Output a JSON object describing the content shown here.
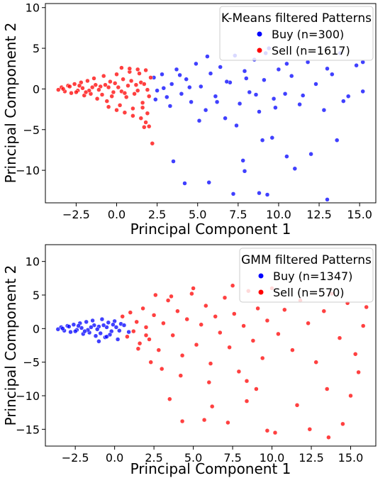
{
  "colors": {
    "buy": "#0000ff",
    "sell": "#ff0000",
    "axis": "#000000"
  },
  "chart_data": [
    {
      "type": "scatter",
      "title": "",
      "xlabel": "Principal Component 1",
      "ylabel": "Principal Component 2",
      "xlim": [
        -4.4,
        16.0
      ],
      "ylim": [
        -14.0,
        10.5
      ],
      "xticks": [
        -2.5,
        0.0,
        2.5,
        5.0,
        7.5,
        10.0,
        12.5,
        15.0
      ],
      "yticks": [
        10,
        5,
        0,
        -5,
        -10
      ],
      "grid": false,
      "legend": {
        "title": "K-Means filtered Patterns",
        "position": "top-right"
      },
      "series": [
        {
          "name": "Buy (n=300)",
          "color": "#0000ff",
          "points": [
            [
              2.3,
              1.4
            ],
            [
              2.5,
              -0.2
            ],
            [
              2.8,
              1.8
            ],
            [
              3.1,
              -1.0
            ],
            [
              3.4,
              0.6
            ],
            [
              3.7,
              2.4
            ],
            [
              4.0,
              -0.6
            ],
            [
              4.3,
              1.2
            ],
            [
              4.6,
              -1.6
            ],
            [
              4.9,
              3.1
            ],
            [
              5.2,
              0.3
            ],
            [
              5.5,
              -2.6
            ],
            [
              5.8,
              1.9
            ],
            [
              6.1,
              -0.9
            ],
            [
              6.4,
              2.7
            ],
            [
              6.7,
              -3.6
            ],
            [
              7.0,
              0.8
            ],
            [
              7.3,
              4.1
            ],
            [
              7.6,
              -1.8
            ],
            [
              7.9,
              2.2
            ],
            [
              8.2,
              -0.4
            ],
            [
              8.5,
              3.6
            ],
            [
              8.8,
              -2.8
            ],
            [
              9.1,
              1.1
            ],
            [
              9.4,
              5.0
            ],
            [
              9.7,
              -1.2
            ],
            [
              10.0,
              2.4
            ],
            [
              10.4,
              -0.6
            ],
            [
              10.8,
              1.6
            ],
            [
              11.3,
              -1.9
            ],
            [
              11.8,
              3.3
            ],
            [
              12.3,
              0.6
            ],
            [
              12.8,
              -2.6
            ],
            [
              13.3,
              1.8
            ],
            [
              13.8,
              4.4
            ],
            [
              14.3,
              -0.9
            ],
            [
              14.8,
              2.9
            ],
            [
              15.2,
              3.3
            ],
            [
              2.4,
              -1.3
            ],
            [
              2.9,
              0.1
            ],
            [
              3.3,
              -2.1
            ],
            [
              3.9,
              1.7
            ],
            [
              4.5,
              0.2
            ],
            [
              5.1,
              -3.9
            ],
            [
              5.6,
              4.0
            ],
            [
              6.2,
              -1.6
            ],
            [
              6.8,
              0.9
            ],
            [
              7.4,
              -4.5
            ],
            [
              8.0,
              1.3
            ],
            [
              8.6,
              -0.7
            ],
            [
              9.2,
              4.4
            ],
            [
              9.8,
              -2.3
            ],
            [
              10.5,
              3.1
            ],
            [
              11.5,
              -0.8
            ],
            [
              13.0,
              2.5
            ],
            [
              14.0,
              -1.5
            ],
            [
              3.5,
              -8.9
            ],
            [
              4.2,
              -11.6
            ],
            [
              5.7,
              -11.5
            ],
            [
              7.2,
              -12.9
            ],
            [
              7.8,
              -8.8
            ],
            [
              7.9,
              -10.1
            ],
            [
              8.8,
              -12.8
            ],
            [
              9.3,
              -13.0
            ],
            [
              9.6,
              -6.0
            ],
            [
              9.0,
              -6.3
            ],
            [
              10.5,
              -8.3
            ],
            [
              11.0,
              -9.8
            ],
            [
              12.0,
              -8.0
            ],
            [
              13.0,
              -13.6
            ],
            [
              13.6,
              -6.3
            ],
            [
              15.2,
              -0.3
            ]
          ]
        },
        {
          "name": "Sell (n=1617)",
          "color": "#ff0000",
          "points": [
            [
              -3.6,
              -0.1
            ],
            [
              -3.4,
              0.2
            ],
            [
              -3.2,
              -0.3
            ],
            [
              -3.0,
              0.4
            ],
            [
              -2.8,
              -0.5
            ],
            [
              -2.6,
              0.6
            ],
            [
              -2.4,
              -0.2
            ],
            [
              -2.2,
              0.8
            ],
            [
              -2.0,
              -0.8
            ],
            [
              -1.8,
              1.0
            ],
            [
              -1.6,
              -0.6
            ],
            [
              -1.4,
              1.3
            ],
            [
              -1.2,
              -1.2
            ],
            [
              -1.0,
              0.3
            ],
            [
              -0.8,
              1.6
            ],
            [
              -0.6,
              -1.5
            ],
            [
              -0.4,
              0.9
            ],
            [
              -0.2,
              -0.4
            ],
            [
              0.0,
              1.8
            ],
            [
              0.2,
              -2.0
            ],
            [
              0.4,
              1.2
            ],
            [
              0.6,
              -1.0
            ],
            [
              0.8,
              2.1
            ],
            [
              1.0,
              -2.4
            ],
            [
              1.2,
              0.5
            ],
            [
              1.4,
              1.9
            ],
            [
              1.6,
              -1.7
            ],
            [
              1.8,
              2.3
            ],
            [
              2.0,
              -0.9
            ],
            [
              2.1,
              1.4
            ],
            [
              -3.3,
              0.0
            ],
            [
              -2.9,
              0.3
            ],
            [
              -2.5,
              -0.4
            ],
            [
              -2.1,
              0.1
            ],
            [
              -1.7,
              -0.2
            ],
            [
              -1.3,
              0.5
            ],
            [
              -0.9,
              -0.7
            ],
            [
              -0.5,
              0.2
            ],
            [
              -0.1,
              0.7
            ],
            [
              0.3,
              -0.3
            ],
            [
              0.7,
              0.4
            ],
            [
              1.1,
              -0.6
            ],
            [
              1.5,
              0.8
            ],
            [
              1.9,
              -0.1
            ],
            [
              -2.3,
              0.4
            ],
            [
              -1.9,
              -0.4
            ],
            [
              -1.5,
              0.2
            ],
            [
              -1.1,
              -0.1
            ],
            [
              -0.7,
              0.5
            ],
            [
              -0.3,
              -0.9
            ],
            [
              0.1,
              0.2
            ],
            [
              0.5,
              -0.5
            ],
            [
              0.9,
              1.0
            ],
            [
              1.3,
              -0.2
            ],
            [
              1.7,
              0.6
            ],
            [
              -0.5,
              -2.2
            ],
            [
              0.0,
              -2.6
            ],
            [
              0.5,
              -2.9
            ],
            [
              1.0,
              -3.3
            ],
            [
              1.5,
              -3.6
            ],
            [
              1.8,
              -4.1
            ],
            [
              2.0,
              -4.6
            ],
            [
              0.3,
              2.6
            ],
            [
              0.8,
              2.5
            ],
            [
              1.3,
              2.4
            ],
            [
              1.6,
              -2.3
            ],
            [
              1.9,
              -3.0
            ],
            [
              1.7,
              -4.7
            ],
            [
              2.2,
              -6.7
            ]
          ]
        }
      ]
    },
    {
      "type": "scatter",
      "title": "",
      "xlabel": "Principal Component 1",
      "ylabel": "Principal Component 2",
      "xlim": [
        -4.4,
        16.6
      ],
      "ylim": [
        -17.5,
        12.5
      ],
      "xticks": [
        -2.5,
        0.0,
        2.5,
        5.0,
        7.5,
        10.0,
        12.5,
        15.0
      ],
      "yticks": [
        10,
        5,
        0,
        -5,
        -10,
        -15
      ],
      "grid": false,
      "legend": {
        "title": "GMM filtered Patterns",
        "position": "top-right"
      },
      "series": [
        {
          "name": "Buy (n=1347)",
          "color": "#0000ff",
          "points": [
            [
              -3.6,
              -0.1
            ],
            [
              -3.4,
              0.2
            ],
            [
              -3.2,
              -0.3
            ],
            [
              -3.0,
              0.4
            ],
            [
              -2.8,
              -0.5
            ],
            [
              -2.6,
              0.6
            ],
            [
              -2.4,
              -0.2
            ],
            [
              -2.2,
              0.8
            ],
            [
              -2.0,
              -0.8
            ],
            [
              -1.8,
              1.0
            ],
            [
              -1.6,
              -0.6
            ],
            [
              -1.4,
              1.2
            ],
            [
              -1.2,
              -1.1
            ],
            [
              -1.0,
              0.3
            ],
            [
              -0.8,
              1.4
            ],
            [
              -0.6,
              -1.3
            ],
            [
              -0.4,
              0.9
            ],
            [
              -0.2,
              -0.4
            ],
            [
              0.0,
              1.1
            ],
            [
              0.2,
              -1.6
            ],
            [
              0.4,
              0.7
            ],
            [
              -3.3,
              0.0
            ],
            [
              -2.9,
              0.3
            ],
            [
              -2.5,
              -0.4
            ],
            [
              -2.1,
              0.1
            ],
            [
              -1.7,
              -0.2
            ],
            [
              -1.3,
              0.5
            ],
            [
              -0.9,
              -0.7
            ],
            [
              -0.5,
              0.2
            ],
            [
              -0.1,
              0.6
            ],
            [
              0.3,
              -0.3
            ],
            [
              -2.3,
              0.4
            ],
            [
              -1.9,
              -0.4
            ],
            [
              -1.5,
              0.2
            ],
            [
              -1.1,
              -0.1
            ],
            [
              -0.7,
              0.5
            ],
            [
              -0.3,
              -0.9
            ],
            [
              0.1,
              0.2
            ],
            [
              -1.0,
              -1.9
            ],
            [
              -0.5,
              -1.2
            ],
            [
              0.6,
              0.5
            ],
            [
              0.9,
              -0.5
            ]
          ]
        },
        {
          "name": "Sell (n=570)",
          "color": "#ff0000",
          "points": [
            [
              0.5,
              1.8
            ],
            [
              0.8,
              -1.2
            ],
            [
              1.0,
              2.4
            ],
            [
              1.2,
              -0.4
            ],
            [
              1.4,
              1.0
            ],
            [
              1.6,
              -2.2
            ],
            [
              1.8,
              3.0
            ],
            [
              2.0,
              0.2
            ],
            [
              2.2,
              -1.6
            ],
            [
              2.5,
              2.0
            ],
            [
              2.8,
              -3.2
            ],
            [
              3.1,
              0.8
            ],
            [
              3.4,
              4.2
            ],
            [
              3.7,
              -1.0
            ],
            [
              4.0,
              2.6
            ],
            [
              4.3,
              -4.0
            ],
            [
              4.6,
              1.4
            ],
            [
              4.9,
              5.2
            ],
            [
              5.2,
              -2.4
            ],
            [
              5.5,
              0.6
            ],
            [
              5.8,
              3.4
            ],
            [
              6.1,
              -5.2
            ],
            [
              6.4,
              1.8
            ],
            [
              6.7,
              -0.6
            ],
            [
              7.0,
              4.6
            ],
            [
              7.3,
              -2.8
            ],
            [
              7.6,
              2.2
            ],
            [
              7.9,
              -6.4
            ],
            [
              8.2,
              0.4
            ],
            [
              8.5,
              5.6
            ],
            [
              8.8,
              -1.8
            ],
            [
              9.1,
              3.0
            ],
            [
              9.4,
              -4.4
            ],
            [
              9.7,
              1.2
            ],
            [
              10.0,
              6.0
            ],
            [
              10.4,
              -0.8
            ],
            [
              10.8,
              2.8
            ],
            [
              11.3,
              -3.2
            ],
            [
              11.8,
              4.2
            ],
            [
              12.3,
              0.8
            ],
            [
              12.8,
              -5.0
            ],
            [
              13.3,
              2.6
            ],
            [
              13.8,
              5.2
            ],
            [
              14.3,
              -1.4
            ],
            [
              14.8,
              3.8
            ],
            [
              15.3,
              -3.8
            ],
            [
              15.8,
              0.4
            ],
            [
              16.0,
              3.2
            ],
            [
              2.3,
              -5.0
            ],
            [
              2.6,
              5.0
            ],
            [
              3.0,
              -6.0
            ],
            [
              3.6,
              4.8
            ],
            [
              4.2,
              -7.0
            ],
            [
              5.0,
              6.0
            ],
            [
              6.0,
              -8.0
            ],
            [
              7.5,
              6.4
            ],
            [
              9.0,
              -9.0
            ],
            [
              13.5,
              -9.0
            ],
            [
              15.5,
              -6.5
            ],
            [
              3.5,
              -10.5
            ],
            [
              4.3,
              -13.8
            ],
            [
              5.7,
              -13.6
            ],
            [
              6.2,
              -11.6
            ],
            [
              7.2,
              -14.0
            ],
            [
              8.4,
              -10.8
            ],
            [
              8.4,
              -7.8
            ],
            [
              9.7,
              -15.2
            ],
            [
              10.2,
              -15.5
            ],
            [
              11.6,
              -11.4
            ],
            [
              12.4,
              -15.0
            ],
            [
              13.6,
              -16.2
            ],
            [
              14.5,
              -14.2
            ],
            [
              15.0,
              -10.0
            ],
            [
              1.5,
              -3.0
            ],
            [
              2.0,
              -1.0
            ]
          ]
        }
      ]
    }
  ]
}
